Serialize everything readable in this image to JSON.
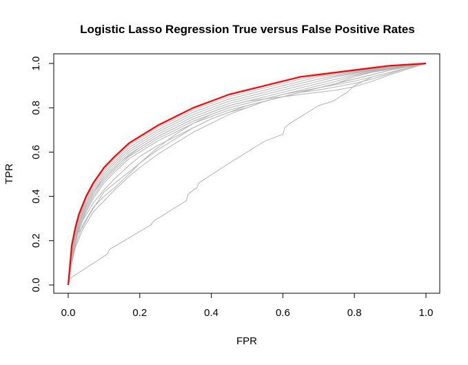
{
  "chart_data": {
    "type": "line",
    "title": "Logistic Lasso Regression True versus False Positive Rates",
    "xlabel": "FPR",
    "ylabel": "TPR",
    "xlim": [
      0,
      1
    ],
    "ylim": [
      0,
      1
    ],
    "xticks": [
      0.0,
      0.2,
      0.4,
      0.6,
      0.8,
      1.0
    ],
    "yticks": [
      0.0,
      0.2,
      0.4,
      0.6,
      0.8,
      1.0
    ],
    "xtick_labels": [
      "0.0",
      "0.2",
      "0.4",
      "0.6",
      "0.8",
      "1.0"
    ],
    "ytick_labels": [
      "0.0",
      "0.2",
      "0.4",
      "0.6",
      "0.8",
      "1.0"
    ],
    "grid": false,
    "legend": "none",
    "colors": {
      "gray_series": "#b3b3b3",
      "highlight_series": "#ff0000",
      "axis": "#000000"
    },
    "series": [
      {
        "color": "#ff0000",
        "highlight": true,
        "x": [
          0,
          0.01,
          0.02,
          0.03,
          0.05,
          0.07,
          0.1,
          0.13,
          0.17,
          0.2,
          0.25,
          0.3,
          0.35,
          0.4,
          0.45,
          0.5,
          0.55,
          0.6,
          0.65,
          0.7,
          0.75,
          0.8,
          0.85,
          0.9,
          0.95,
          1.0
        ],
        "y": [
          0,
          0.18,
          0.26,
          0.32,
          0.4,
          0.46,
          0.53,
          0.58,
          0.64,
          0.67,
          0.72,
          0.76,
          0.8,
          0.83,
          0.86,
          0.88,
          0.9,
          0.92,
          0.94,
          0.95,
          0.96,
          0.97,
          0.98,
          0.99,
          0.995,
          1.0
        ]
      },
      {
        "color": "#b3b3b3",
        "x": [
          0,
          0.01,
          0.02,
          0.03,
          0.05,
          0.07,
          0.1,
          0.13,
          0.17,
          0.2,
          0.25,
          0.3,
          0.35,
          0.4,
          0.45,
          0.5,
          0.55,
          0.6,
          0.65,
          0.7,
          0.75,
          0.8,
          0.85,
          0.9,
          0.95,
          1.0
        ],
        "y": [
          0,
          0.17,
          0.25,
          0.31,
          0.39,
          0.45,
          0.52,
          0.57,
          0.63,
          0.66,
          0.71,
          0.75,
          0.79,
          0.82,
          0.85,
          0.87,
          0.89,
          0.91,
          0.93,
          0.945,
          0.955,
          0.965,
          0.975,
          0.985,
          0.993,
          1.0
        ]
      },
      {
        "color": "#b3b3b3",
        "x": [
          0,
          0.01,
          0.02,
          0.03,
          0.05,
          0.07,
          0.1,
          0.13,
          0.17,
          0.2,
          0.25,
          0.3,
          0.35,
          0.4,
          0.45,
          0.5,
          0.55,
          0.6,
          0.65,
          0.7,
          0.75,
          0.8,
          0.85,
          0.9,
          0.95,
          1.0
        ],
        "y": [
          0,
          0.16,
          0.24,
          0.3,
          0.38,
          0.44,
          0.51,
          0.56,
          0.62,
          0.65,
          0.7,
          0.74,
          0.78,
          0.81,
          0.84,
          0.86,
          0.88,
          0.9,
          0.92,
          0.94,
          0.95,
          0.962,
          0.972,
          0.982,
          0.992,
          1.0
        ]
      },
      {
        "color": "#b3b3b3",
        "x": [
          0,
          0.01,
          0.02,
          0.03,
          0.05,
          0.07,
          0.1,
          0.13,
          0.17,
          0.2,
          0.25,
          0.3,
          0.35,
          0.4,
          0.45,
          0.5,
          0.55,
          0.6,
          0.65,
          0.7,
          0.75,
          0.8,
          0.85,
          0.9,
          0.95,
          1.0
        ],
        "y": [
          0,
          0.15,
          0.23,
          0.29,
          0.37,
          0.43,
          0.5,
          0.55,
          0.61,
          0.64,
          0.69,
          0.73,
          0.77,
          0.8,
          0.83,
          0.85,
          0.87,
          0.89,
          0.91,
          0.93,
          0.945,
          0.958,
          0.97,
          0.98,
          0.99,
          1.0
        ]
      },
      {
        "color": "#b3b3b3",
        "x": [
          0,
          0.01,
          0.02,
          0.03,
          0.05,
          0.07,
          0.1,
          0.13,
          0.17,
          0.2,
          0.25,
          0.3,
          0.35,
          0.4,
          0.45,
          0.5,
          0.55,
          0.6,
          0.65,
          0.7,
          0.75,
          0.8,
          0.85,
          0.9,
          0.95,
          1.0
        ],
        "y": [
          0,
          0.14,
          0.22,
          0.28,
          0.36,
          0.42,
          0.49,
          0.54,
          0.6,
          0.63,
          0.68,
          0.72,
          0.76,
          0.79,
          0.82,
          0.84,
          0.86,
          0.88,
          0.9,
          0.92,
          0.94,
          0.955,
          0.968,
          0.978,
          0.989,
          1.0
        ]
      },
      {
        "color": "#b3b3b3",
        "x": [
          0,
          0.01,
          0.02,
          0.03,
          0.05,
          0.07,
          0.1,
          0.13,
          0.17,
          0.2,
          0.25,
          0.3,
          0.35,
          0.4,
          0.45,
          0.5,
          0.55,
          0.6,
          0.65,
          0.7,
          0.75,
          0.8,
          0.85,
          0.9,
          0.95,
          1.0
        ],
        "y": [
          0,
          0.13,
          0.21,
          0.27,
          0.35,
          0.41,
          0.48,
          0.53,
          0.59,
          0.62,
          0.67,
          0.71,
          0.75,
          0.78,
          0.81,
          0.83,
          0.85,
          0.87,
          0.89,
          0.91,
          0.93,
          0.95,
          0.965,
          0.977,
          0.988,
          1.0
        ]
      },
      {
        "color": "#b3b3b3",
        "x": [
          0,
          0.01,
          0.02,
          0.03,
          0.05,
          0.07,
          0.1,
          0.13,
          0.17,
          0.2,
          0.25,
          0.3,
          0.35,
          0.4,
          0.45,
          0.5,
          0.55,
          0.6,
          0.65,
          0.7,
          0.75,
          0.8,
          0.85,
          0.9,
          0.95,
          1.0
        ],
        "y": [
          0,
          0.12,
          0.2,
          0.26,
          0.34,
          0.4,
          0.47,
          0.52,
          0.58,
          0.61,
          0.66,
          0.7,
          0.74,
          0.77,
          0.8,
          0.82,
          0.84,
          0.86,
          0.88,
          0.9,
          0.92,
          0.945,
          0.962,
          0.975,
          0.987,
          1.0
        ]
      },
      {
        "color": "#b3b3b3",
        "x": [
          0,
          0.01,
          0.02,
          0.03,
          0.05,
          0.07,
          0.1,
          0.13,
          0.17,
          0.2,
          0.25,
          0.3,
          0.35,
          0.4,
          0.45,
          0.5,
          0.55,
          0.6,
          0.65,
          0.7,
          0.75,
          0.8,
          0.85,
          0.9,
          0.95,
          1.0
        ],
        "y": [
          0,
          0.11,
          0.19,
          0.25,
          0.33,
          0.39,
          0.46,
          0.51,
          0.57,
          0.6,
          0.65,
          0.69,
          0.73,
          0.76,
          0.79,
          0.81,
          0.83,
          0.85,
          0.87,
          0.89,
          0.91,
          0.94,
          0.96,
          0.974,
          0.986,
          1.0
        ]
      },
      {
        "color": "#b3b3b3",
        "x": [
          0,
          0.01,
          0.02,
          0.04,
          0.07,
          0.1,
          0.13,
          0.17,
          0.2,
          0.25,
          0.3,
          0.35,
          0.4,
          0.45,
          0.5,
          0.55,
          0.6,
          0.65,
          0.7,
          0.75,
          0.8,
          0.85,
          0.9,
          0.95,
          1.0
        ],
        "y": [
          0,
          0.12,
          0.2,
          0.29,
          0.37,
          0.43,
          0.48,
          0.54,
          0.58,
          0.63,
          0.67,
          0.71,
          0.75,
          0.78,
          0.8,
          0.83,
          0.85,
          0.87,
          0.89,
          0.91,
          0.93,
          0.95,
          0.97,
          0.985,
          1.0
        ]
      },
      {
        "color": "#b3b3b3",
        "x": [
          0,
          0.01,
          0.02,
          0.04,
          0.06,
          0.08,
          0.1,
          0.13,
          0.17,
          0.2,
          0.25,
          0.3,
          0.35,
          0.4,
          0.45,
          0.5,
          0.55,
          0.6,
          0.65,
          0.7,
          0.75,
          0.8,
          0.85,
          0.9,
          0.95,
          1.0
        ],
        "y": [
          0,
          0.14,
          0.22,
          0.26,
          0.32,
          0.37,
          0.42,
          0.46,
          0.51,
          0.55,
          0.61,
          0.66,
          0.71,
          0.75,
          0.78,
          0.81,
          0.83,
          0.85,
          0.87,
          0.89,
          0.91,
          0.93,
          0.95,
          0.97,
          0.985,
          1.0
        ]
      },
      {
        "color": "#b3b3b3",
        "x": [
          0,
          0.01,
          0.02,
          0.04,
          0.07,
          0.1,
          0.13,
          0.17,
          0.2,
          0.25,
          0.3,
          0.35,
          0.4,
          0.45,
          0.5,
          0.55,
          0.6,
          0.65,
          0.7,
          0.75,
          0.8,
          0.85,
          0.9,
          0.95,
          1.0
        ],
        "y": [
          0,
          0.11,
          0.18,
          0.27,
          0.35,
          0.4,
          0.44,
          0.5,
          0.55,
          0.62,
          0.68,
          0.73,
          0.77,
          0.8,
          0.82,
          0.84,
          0.86,
          0.875,
          0.89,
          0.905,
          0.92,
          0.94,
          0.96,
          0.98,
          1.0
        ]
      },
      {
        "color": "#b3b3b3",
        "x": [
          0,
          0.01,
          0.02,
          0.04,
          0.07,
          0.1,
          0.13,
          0.17,
          0.2,
          0.25,
          0.3,
          0.35,
          0.4,
          0.45,
          0.5,
          0.55,
          0.6,
          0.65,
          0.7,
          0.75,
          0.8,
          0.85,
          0.9,
          0.95,
          1.0
        ],
        "y": [
          0,
          0.1,
          0.17,
          0.25,
          0.33,
          0.38,
          0.43,
          0.49,
          0.53,
          0.59,
          0.64,
          0.69,
          0.73,
          0.77,
          0.8,
          0.83,
          0.85,
          0.87,
          0.88,
          0.895,
          0.91,
          0.93,
          0.955,
          0.98,
          1.0
        ]
      },
      {
        "color": "#b3b3b3",
        "x": [
          0,
          0.01,
          0.02,
          0.03,
          0.05,
          0.07,
          0.1,
          0.15,
          0.2,
          0.25,
          0.3,
          0.35,
          0.4,
          0.45,
          0.5,
          0.55,
          0.6,
          0.65,
          0.7,
          0.75,
          0.8,
          0.85,
          0.9,
          0.95,
          1.0
        ],
        "y": [
          0,
          0.13,
          0.21,
          0.28,
          0.36,
          0.42,
          0.48,
          0.56,
          0.62,
          0.67,
          0.71,
          0.75,
          0.78,
          0.81,
          0.83,
          0.84,
          0.85,
          0.86,
          0.87,
          0.88,
          0.895,
          0.92,
          0.95,
          0.975,
          1.0
        ]
      },
      {
        "color": "#b3b3b3",
        "x": [
          0,
          0.005,
          0.11,
          0.115,
          0.23,
          0.24,
          0.33,
          0.335,
          0.36,
          0.365,
          0.45,
          0.55,
          0.6,
          0.605,
          0.62,
          0.7,
          0.74,
          0.75,
          0.78,
          0.8,
          0.85,
          0.9,
          0.95,
          1.0
        ],
        "y": [
          0,
          0.03,
          0.14,
          0.16,
          0.27,
          0.29,
          0.38,
          0.41,
          0.44,
          0.46,
          0.55,
          0.65,
          0.68,
          0.71,
          0.73,
          0.81,
          0.83,
          0.84,
          0.87,
          0.9,
          0.94,
          0.96,
          0.98,
          1.0
        ]
      }
    ]
  }
}
